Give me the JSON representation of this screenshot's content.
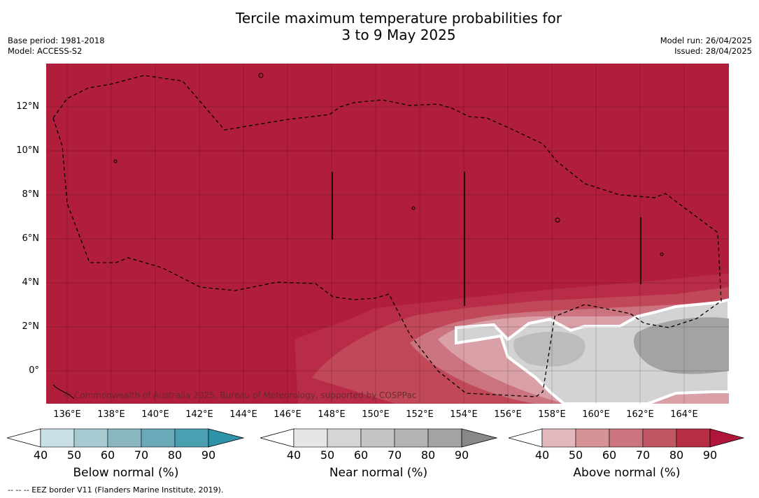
{
  "title_line1": "Tercile maximum temperature probabilities for",
  "title_line2": "3 to 9 May 2025",
  "meta_left": [
    "Base period: 1981-2018",
    "Model: ACCESS-S2"
  ],
  "meta_right": [
    "Model run: 26/04/2025",
    "Issued: 28/04/2025"
  ],
  "y_ticks": [
    "12°N",
    "10°N",
    "8°N",
    "6°N",
    "4°N",
    "2°N",
    "0°"
  ],
  "x_ticks": [
    "136°E",
    "138°E",
    "140°E",
    "142°E",
    "144°E",
    "146°E",
    "148°E",
    "150°E",
    "152°E",
    "154°E",
    "156°E",
    "158°E",
    "160°E",
    "162°E",
    "164°E"
  ],
  "copyright": "© Commonwealth of Australia 2025, Bureau of Meteorology, supported by COSPPac",
  "colorbars": [
    {
      "title": "Below normal (%)",
      "ticks": [
        "40",
        "50",
        "60",
        "70",
        "80",
        "90"
      ],
      "colors": [
        "#c8e0e6",
        "#a8cad1",
        "#89b6c1",
        "#6aaab8",
        "#4aa0b0",
        "#2e92a8"
      ]
    },
    {
      "title": "Near normal (%)",
      "ticks": [
        "40",
        "50",
        "60",
        "70",
        "80",
        "90"
      ],
      "colors": [
        "#e6e6e6",
        "#d5d5d5",
        "#c4c4c4",
        "#b4b4b4",
        "#a3a3a3",
        "#888888"
      ]
    },
    {
      "title": "Above normal (%)",
      "ticks": [
        "40",
        "50",
        "60",
        "70",
        "80",
        "90"
      ],
      "colors": [
        "#e3b8bd",
        "#d79298",
        "#cb767e",
        "#c15763",
        "#b62d44",
        "#b0163a"
      ]
    }
  ],
  "footer": "--  --  -- EEZ border V11 (Flanders Marine Institute, 2019).",
  "colors": {
    "above_high": "#b01e3c",
    "near_mid": "#c8c8c8",
    "border": "#ffffff"
  }
}
